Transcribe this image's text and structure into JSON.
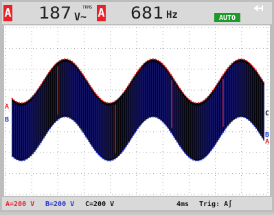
{
  "header": {
    "channel_1": "A",
    "reading_1": "187",
    "unit_1": "V~",
    "unit_1_note": "TRMS",
    "channel_2": "A",
    "reading_2": "681",
    "unit_2": "Hz",
    "mode": "AUTO"
  },
  "screen": {
    "left_markers": [
      "A",
      "B"
    ],
    "right_markers": [
      "C",
      "B",
      "A"
    ]
  },
  "footer": {
    "a_scale": "A=200 V",
    "b_scale": "B=200 V",
    "c_scale": "C=200 V",
    "timebase": "4ms",
    "trigger": "Trig: A∫"
  }
}
